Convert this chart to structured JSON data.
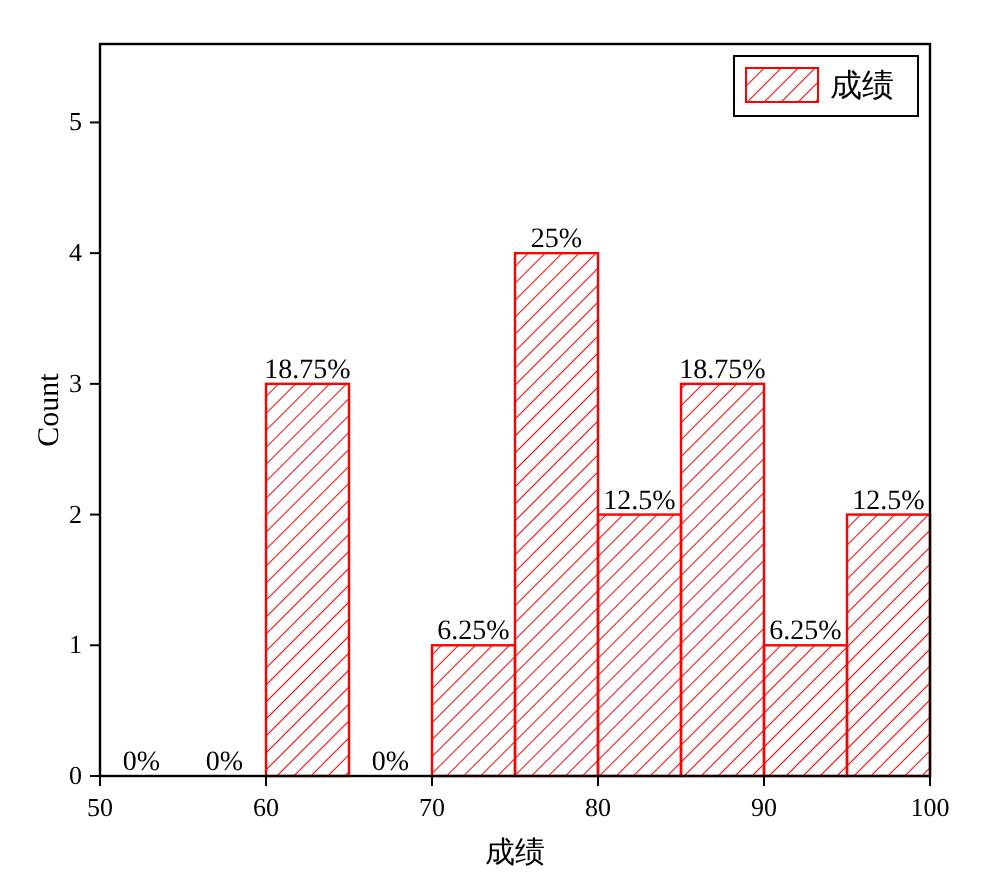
{
  "chart_data": {
    "type": "histogram",
    "xlabel": "成绩",
    "ylabel": "Count",
    "bins": [
      50,
      55,
      60,
      65,
      70,
      75,
      80,
      85,
      90,
      95,
      100
    ],
    "series": [
      {
        "name": "成绩",
        "color": "#ff0000",
        "values": [
          0,
          0,
          3,
          0,
          1,
          4,
          2,
          3,
          1,
          2
        ]
      }
    ],
    "annotations": [
      {
        "text": "0%",
        "x": 52.5,
        "y": 0
      },
      {
        "text": "0%",
        "x": 57.5,
        "y": 0
      },
      {
        "text": "18.75%",
        "x": 62.5,
        "y": 3
      },
      {
        "text": "0%",
        "x": 67.5,
        "y": 0
      },
      {
        "text": "6.25%",
        "x": 72.5,
        "y": 1
      },
      {
        "text": "25%",
        "x": 77.5,
        "y": 4
      },
      {
        "text": "12.5%",
        "x": 82.5,
        "y": 2
      },
      {
        "text": "18.75%",
        "x": 87.5,
        "y": 3
      },
      {
        "text": "6.25%",
        "x": 92.5,
        "y": 1
      },
      {
        "text": "12.5%",
        "x": 97.5,
        "y": 2
      }
    ],
    "xlim": [
      50,
      100
    ],
    "xticks": [
      50,
      60,
      70,
      80,
      90,
      100
    ],
    "ylim": [
      0,
      5.6
    ],
    "yticks": [
      0,
      1,
      2,
      3,
      4,
      5
    ],
    "legend": "top right"
  }
}
